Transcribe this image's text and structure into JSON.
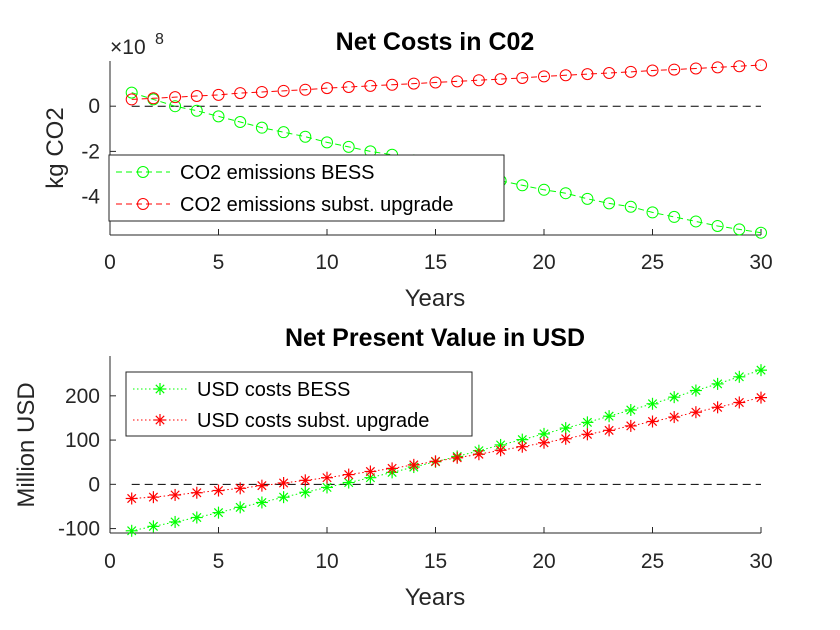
{
  "chart_data": [
    {
      "type": "line",
      "title": "Net Costs in C02",
      "xlabel": "Years",
      "ylabel": "kg CO2",
      "y_exponent_label": "×10",
      "y_exponent": "8",
      "xlim": [
        0,
        30
      ],
      "ylim": [
        -5.7,
        2.0
      ],
      "xticks": [
        0,
        5,
        10,
        15,
        20,
        25,
        30
      ],
      "yticks": [
        -4,
        -2,
        0
      ],
      "grid": false,
      "legend_position": "bottom-left",
      "reference_line": {
        "y": 0,
        "style": "dashed",
        "color": "#000000"
      },
      "x": [
        1,
        2,
        3,
        4,
        5,
        6,
        7,
        8,
        9,
        10,
        11,
        12,
        13,
        14,
        15,
        16,
        17,
        18,
        19,
        20,
        21,
        22,
        23,
        24,
        25,
        26,
        27,
        28,
        29,
        30
      ],
      "series": [
        {
          "name": "CO2 emissions BESS",
          "color": "#00ff00",
          "marker": "circle",
          "line": "dashed",
          "values": [
            0.6,
            0.3,
            0.0,
            -0.2,
            -0.45,
            -0.7,
            -0.95,
            -1.15,
            -1.35,
            -1.6,
            -1.8,
            -2.0,
            -2.15,
            -2.4,
            -2.6,
            -2.8,
            -3.05,
            -3.3,
            -3.5,
            -3.7,
            -3.85,
            -4.1,
            -4.3,
            -4.45,
            -4.7,
            -4.9,
            -5.1,
            -5.3,
            -5.45,
            -5.6
          ]
        },
        {
          "name": "CO2 emissions subst. upgrade",
          "color": "#ff0000",
          "marker": "circle",
          "line": "dashed",
          "values": [
            0.3,
            0.35,
            0.4,
            0.45,
            0.5,
            0.58,
            0.63,
            0.68,
            0.73,
            0.8,
            0.85,
            0.9,
            0.95,
            1.0,
            1.05,
            1.1,
            1.15,
            1.2,
            1.25,
            1.32,
            1.37,
            1.42,
            1.47,
            1.52,
            1.58,
            1.62,
            1.67,
            1.72,
            1.77,
            1.82
          ]
        }
      ]
    },
    {
      "type": "line",
      "title": "Net Present Value in USD",
      "xlabel": "Years",
      "ylabel": "Million USD",
      "xlim": [
        0,
        30
      ],
      "ylim": [
        -110,
        290
      ],
      "xticks": [
        0,
        5,
        10,
        15,
        20,
        25,
        30
      ],
      "yticks": [
        -100,
        0,
        100,
        200
      ],
      "grid": false,
      "legend_position": "top-left",
      "reference_line": {
        "y": 0,
        "style": "dashed",
        "color": "#000000"
      },
      "x": [
        1,
        2,
        3,
        4,
        5,
        6,
        7,
        8,
        9,
        10,
        11,
        12,
        13,
        14,
        15,
        16,
        17,
        18,
        19,
        20,
        21,
        22,
        23,
        24,
        25,
        26,
        27,
        28,
        29,
        30
      ],
      "series": [
        {
          "name": "USD costs BESS",
          "color": "#00ff00",
          "marker": "asterisk",
          "line": "dotted",
          "values": [
            -105,
            -95,
            -85,
            -75,
            -64,
            -52,
            -41,
            -29,
            -18,
            -7,
            4,
            15,
            27,
            39,
            51,
            63,
            76,
            89,
            101,
            114,
            127,
            140,
            154,
            168,
            182,
            197,
            212,
            227,
            243,
            258
          ]
        },
        {
          "name": "USD costs subst. upgrade",
          "color": "#ff0000",
          "marker": "asterisk",
          "line": "dotted",
          "values": [
            -32,
            -29,
            -24,
            -19,
            -14,
            -9,
            -3,
            3,
            9,
            15,
            22,
            29,
            36,
            44,
            52,
            60,
            68,
            77,
            85,
            94,
            103,
            113,
            122,
            132,
            142,
            152,
            163,
            174,
            185,
            196
          ]
        }
      ]
    }
  ]
}
